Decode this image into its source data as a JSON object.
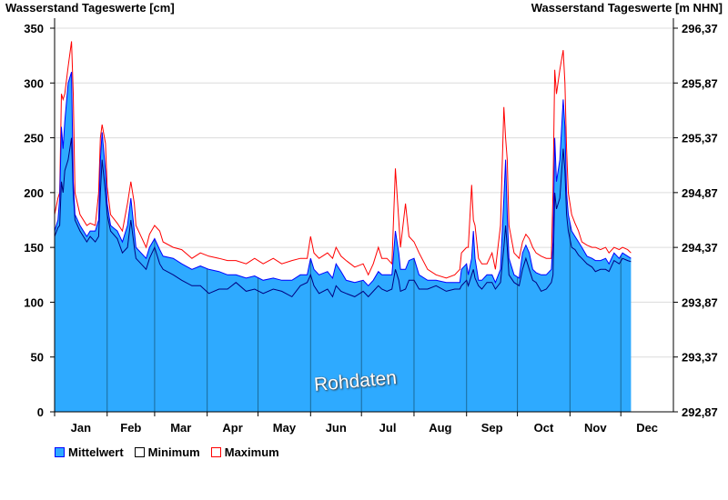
{
  "chart_data": {
    "type": "area",
    "title_left": "Wasserstand Tageswerte [cm]",
    "title_right": "Wasserstand Tageswerte [m NHN]",
    "ylim": [
      0,
      350
    ],
    "yticks": [
      "0",
      "50",
      "100",
      "150",
      "200",
      "250",
      "300",
      "350"
    ],
    "yticks_right": [
      "292,87",
      "293,37",
      "293,87",
      "294,37",
      "294,87",
      "295,37",
      "295,87",
      "296,37"
    ],
    "months": [
      "Jan",
      "Feb",
      "Mar",
      "Apr",
      "May",
      "Jun",
      "Jul",
      "Aug",
      "Sep",
      "Oct",
      "Nov",
      "Dec"
    ],
    "month_start_days": [
      0,
      31,
      59,
      90,
      120,
      151,
      181,
      212,
      243,
      273,
      304,
      334,
      365
    ],
    "days_in_year": 365,
    "grid": true,
    "watermark": "Rohdaten",
    "legend": {
      "placement": "bottom-left",
      "items": [
        "Mittelwert",
        "Minimum",
        "Maximum"
      ]
    },
    "colors": {
      "fill": "#2eaaff",
      "mean": "#0000ff",
      "min": "#000080",
      "max": "#ff0000"
    },
    "day": [
      0,
      2,
      3,
      4,
      5,
      6,
      8,
      10,
      11,
      12,
      15,
      19,
      21,
      24,
      26,
      27,
      28,
      30,
      31,
      33,
      37,
      40,
      43,
      45,
      47,
      48,
      51,
      54,
      56,
      59,
      62,
      64,
      70,
      75,
      81,
      86,
      91,
      97,
      102,
      107,
      113,
      118,
      123,
      129,
      134,
      140,
      145,
      149,
      151,
      153,
      156,
      161,
      164,
      166,
      169,
      172,
      177,
      182,
      185,
      188,
      191,
      193,
      196,
      199,
      201,
      203,
      204,
      207,
      209,
      212,
      215,
      220,
      225,
      231,
      236,
      239,
      240,
      243,
      244,
      246,
      247,
      248,
      250,
      252,
      255,
      258,
      260,
      263,
      265,
      266,
      267,
      268,
      271,
      274,
      276,
      278,
      280,
      282,
      284,
      287,
      290,
      293,
      294,
      295,
      296,
      298,
      300,
      301,
      302,
      303,
      305,
      307,
      309,
      311,
      314,
      317,
      319,
      322,
      325,
      327,
      330,
      333,
      335,
      338,
      340
    ],
    "series": [
      {
        "name": "Mittelwert",
        "values": [
          165,
          175,
          195,
          260,
          240,
          265,
          300,
          310,
          210,
          180,
          170,
          160,
          165,
          165,
          175,
          230,
          255,
          220,
          190,
          170,
          165,
          155,
          170,
          195,
          165,
          150,
          145,
          140,
          150,
          158,
          148,
          142,
          140,
          135,
          130,
          133,
          130,
          128,
          125,
          125,
          122,
          124,
          120,
          122,
          120,
          120,
          125,
          125,
          140,
          130,
          125,
          128,
          122,
          135,
          128,
          120,
          118,
          120,
          115,
          120,
          128,
          125,
          125,
          125,
          165,
          145,
          130,
          130,
          138,
          140,
          125,
          120,
          120,
          118,
          118,
          118,
          130,
          135,
          125,
          140,
          165,
          140,
          120,
          120,
          125,
          125,
          118,
          130,
          195,
          230,
          180,
          140,
          125,
          122,
          145,
          152,
          145,
          130,
          127,
          125,
          125,
          130,
          155,
          250,
          210,
          230,
          285,
          260,
          200,
          180,
          165,
          160,
          155,
          150,
          142,
          140,
          138,
          138,
          140,
          135,
          145,
          140,
          145,
          142,
          140
        ]
      },
      {
        "name": "Minimum",
        "values": [
          160,
          168,
          170,
          210,
          200,
          220,
          230,
          250,
          200,
          175,
          165,
          155,
          160,
          155,
          160,
          200,
          230,
          200,
          180,
          165,
          158,
          145,
          150,
          175,
          150,
          140,
          135,
          130,
          140,
          150,
          135,
          130,
          125,
          120,
          115,
          115,
          108,
          112,
          112,
          118,
          110,
          112,
          108,
          112,
          110,
          105,
          115,
          118,
          125,
          115,
          108,
          112,
          105,
          115,
          110,
          108,
          105,
          110,
          105,
          110,
          115,
          112,
          110,
          112,
          130,
          120,
          110,
          112,
          120,
          120,
          112,
          112,
          115,
          110,
          112,
          112,
          115,
          120,
          115,
          125,
          130,
          122,
          115,
          112,
          118,
          118,
          112,
          118,
          150,
          170,
          150,
          125,
          118,
          115,
          130,
          140,
          130,
          120,
          118,
          110,
          112,
          118,
          125,
          200,
          185,
          195,
          240,
          220,
          180,
          165,
          150,
          148,
          143,
          140,
          135,
          132,
          128,
          130,
          130,
          128,
          138,
          135,
          140,
          138,
          137
        ]
      },
      {
        "name": "Maximum",
        "values": [
          180,
          195,
          200,
          290,
          285,
          290,
          315,
          338,
          290,
          200,
          180,
          170,
          172,
          170,
          200,
          250,
          262,
          245,
          205,
          180,
          172,
          165,
          190,
          210,
          190,
          170,
          160,
          150,
          162,
          170,
          165,
          155,
          150,
          148,
          140,
          145,
          142,
          140,
          138,
          138,
          135,
          140,
          135,
          140,
          135,
          138,
          140,
          140,
          160,
          145,
          140,
          145,
          140,
          150,
          142,
          138,
          132,
          135,
          125,
          135,
          150,
          140,
          140,
          135,
          222,
          175,
          150,
          190,
          160,
          155,
          145,
          130,
          125,
          122,
          125,
          130,
          145,
          150,
          150,
          207,
          175,
          170,
          140,
          135,
          135,
          145,
          130,
          170,
          278,
          250,
          230,
          170,
          145,
          140,
          155,
          162,
          158,
          150,
          145,
          142,
          140,
          140,
          200,
          312,
          290,
          312,
          330,
          300,
          240,
          200,
          180,
          172,
          165,
          155,
          152,
          150,
          150,
          148,
          150,
          145,
          150,
          148,
          150,
          148,
          145
        ]
      }
    ]
  }
}
